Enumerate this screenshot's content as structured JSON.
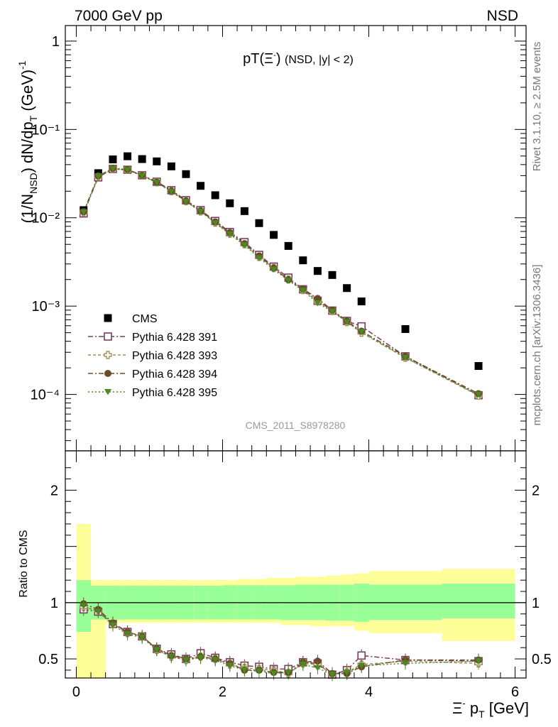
{
  "header": {
    "left": "7000 GeV pp",
    "right": "NSD"
  },
  "side_labels": {
    "rivet": "Rivet 3.1.10, ≥ 2.5M events",
    "mcplots": "mcplots.cern.ch [arXiv:1306.3436]"
  },
  "watermark": "CMS_2011_S8978280",
  "chart_data": [
    {
      "type": "scatter",
      "title": "pT(Ξ⁻) (NSD, |y| < 2)",
      "xlabel": "Ξ⁻ p_T [GeV]",
      "ylabel": "(1/N_NSD) dN/dp_T (GeV)^-1",
      "xlim": [
        -0.15,
        6.15
      ],
      "ylim": [
        2.3e-05,
        1.5
      ],
      "yscale": "log",
      "ytick_labels": [
        "1",
        "10⁻¹",
        "10⁻²",
        "10⁻³",
        "10⁻⁴"
      ],
      "legend_position": "lower-left",
      "x": [
        0.1,
        0.3,
        0.5,
        0.7,
        0.9,
        1.1,
        1.3,
        1.5,
        1.7,
        1.9,
        2.1,
        2.3,
        2.5,
        2.7,
        2.9,
        3.1,
        3.3,
        3.5,
        3.7,
        3.9,
        4.5,
        5.5
      ],
      "series": [
        {
          "name": "CMS",
          "color": "#000000",
          "marker": "square-filled",
          "values": [
            0.0122,
            0.032,
            0.0458,
            0.0497,
            0.0462,
            0.0435,
            0.0382,
            0.0312,
            0.023,
            0.018,
            0.0146,
            0.0119,
            0.0087,
            0.0064,
            0.0048,
            0.0033,
            0.0025,
            0.00225,
            0.0016,
            0.00113,
            0.00055,
            0.00021
          ]
        },
        {
          "name": "Pythia 6.428 391",
          "color": "#7a3e5c",
          "marker": "square-open",
          "values": [
            0.0112,
            0.0287,
            0.0357,
            0.035,
            0.0303,
            0.0256,
            0.0205,
            0.0158,
            0.0122,
            0.0092,
            0.0069,
            0.0053,
            0.0038,
            0.0028,
            0.0021,
            0.00155,
            0.00115,
            0.00089,
            0.00068,
            0.00059,
            0.00027,
            9.8e-05
          ]
        },
        {
          "name": "Pythia 6.428 393",
          "color": "#9c9050",
          "marker": "cross-open",
          "values": [
            0.0115,
            0.0292,
            0.036,
            0.0351,
            0.0301,
            0.0252,
            0.02,
            0.0154,
            0.0118,
            0.0088,
            0.0066,
            0.005,
            0.0036,
            0.0027,
            0.002,
            0.00152,
            0.00113,
            0.00088,
            0.00066,
            0.0005,
            0.00026,
            9.7e-05
          ]
        },
        {
          "name": "Pythia 6.428 394",
          "color": "#6b4a2a",
          "marker": "circle-filled",
          "values": [
            0.0117,
            0.0298,
            0.0362,
            0.0352,
            0.0302,
            0.0253,
            0.0201,
            0.0155,
            0.012,
            0.009,
            0.0068,
            0.0051,
            0.0037,
            0.0027,
            0.00199,
            0.00157,
            0.00122,
            0.0009,
            0.00068,
            0.00052,
            0.00027,
            0.000102
          ]
        },
        {
          "name": "Pythia 6.428 395",
          "color": "#4a8a20",
          "marker": "triangle-down-filled",
          "values": [
            0.0116,
            0.0294,
            0.0358,
            0.0346,
            0.0298,
            0.025,
            0.0198,
            0.0152,
            0.0118,
            0.0087,
            0.0065,
            0.0049,
            0.0035,
            0.0026,
            0.00195,
            0.0015,
            0.00108,
            0.00087,
            0.00066,
            0.00051,
            0.00026,
            0.0001
          ]
        }
      ]
    },
    {
      "type": "scatter",
      "title": "",
      "xlabel": "Ξ⁻ p_T [GeV]",
      "ylabel": "Ratio to CMS",
      "xlim": [
        -0.15,
        6.15
      ],
      "ylim": [
        0.33,
        2.35
      ],
      "yticks": [
        0.5,
        1,
        2
      ],
      "ytick_labels": [
        "0.5",
        "1",
        "2"
      ],
      "xticks": [
        0,
        2,
        4,
        6
      ],
      "xtick_labels": [
        "0",
        "2",
        "4",
        "6"
      ],
      "reference_line": 1,
      "bands": {
        "bin_edges": [
          0,
          0.2,
          0.4,
          0.6,
          0.8,
          1.0,
          1.2,
          1.4,
          1.6,
          1.8,
          2.0,
          2.2,
          2.4,
          2.6,
          2.8,
          3.0,
          3.2,
          3.4,
          3.6,
          3.8,
          4.0,
          5.0,
          6.0
        ],
        "inner": {
          "color": "#99ff99",
          "lower": [
            0.74,
            0.85,
            0.85,
            0.85,
            0.85,
            0.85,
            0.85,
            0.85,
            0.85,
            0.85,
            0.85,
            0.85,
            0.85,
            0.85,
            0.845,
            0.845,
            0.845,
            0.84,
            0.84,
            0.83,
            0.845,
            0.86
          ],
          "upper": [
            1.2,
            1.15,
            1.15,
            1.15,
            1.15,
            1.15,
            1.15,
            1.15,
            1.15,
            1.15,
            1.155,
            1.155,
            1.155,
            1.155,
            1.155,
            1.16,
            1.16,
            1.16,
            1.16,
            1.17,
            1.16,
            1.17
          ]
        },
        "outer": {
          "color": "#ffff99",
          "lower": [
            0.0,
            0.0,
            0.82,
            0.82,
            0.82,
            0.82,
            0.82,
            0.82,
            0.82,
            0.82,
            0.82,
            0.82,
            0.82,
            0.82,
            0.8,
            0.8,
            0.79,
            0.79,
            0.79,
            0.75,
            0.73,
            0.66
          ]
        },
        "outer_upper": [
          1.7,
          1.2,
          1.2,
          1.2,
          1.2,
          1.2,
          1.2,
          1.2,
          1.2,
          1.2,
          1.2,
          1.21,
          1.21,
          1.22,
          1.22,
          1.23,
          1.23,
          1.24,
          1.25,
          1.26,
          1.28,
          1.3
        ]
      },
      "x": [
        0.1,
        0.3,
        0.5,
        0.7,
        0.9,
        1.1,
        1.3,
        1.5,
        1.7,
        1.9,
        2.1,
        2.3,
        2.5,
        2.7,
        2.9,
        3.1,
        3.3,
        3.5,
        3.7,
        3.9,
        4.5,
        5.5
      ],
      "series": [
        {
          "name": "Pythia 6.428 391",
          "color": "#7a3e5c",
          "marker": "square-open",
          "values": [
            0.94,
            0.92,
            0.81,
            0.74,
            0.7,
            0.59,
            0.54,
            0.5,
            0.55,
            0.51,
            0.47,
            0.44,
            0.43,
            0.41,
            0.41,
            0.47,
            0.46,
            0.36,
            0.4,
            0.53,
            0.49,
            0.48
          ]
        },
        {
          "name": "Pythia 6.428 393",
          "color": "#9c9050",
          "marker": "cross-open",
          "values": [
            0.96,
            0.93,
            0.81,
            0.73,
            0.7,
            0.58,
            0.52,
            0.49,
            0.52,
            0.5,
            0.45,
            0.42,
            0.41,
            0.4,
            0.37,
            0.46,
            0.45,
            0.36,
            0.38,
            0.45,
            0.48,
            0.46
          ]
        },
        {
          "name": "Pythia 6.428 394",
          "color": "#6b4a2a",
          "marker": "circle-filled",
          "values": [
            0.99,
            0.94,
            0.82,
            0.74,
            0.7,
            0.59,
            0.53,
            0.5,
            0.52,
            0.5,
            0.46,
            0.4,
            0.4,
            0.38,
            0.38,
            0.47,
            0.48,
            0.37,
            0.37,
            0.43,
            0.49,
            0.49
          ]
        },
        {
          "name": "Pythia 6.428 395",
          "color": "#4a8a20",
          "marker": "triangle-down-filled",
          "values": [
            0.97,
            0.92,
            0.8,
            0.72,
            0.69,
            0.58,
            0.52,
            0.49,
            0.51,
            0.49,
            0.44,
            0.4,
            0.39,
            0.37,
            0.38,
            0.45,
            0.42,
            0.36,
            0.38,
            0.44,
            0.46,
            0.48
          ]
        }
      ]
    }
  ]
}
